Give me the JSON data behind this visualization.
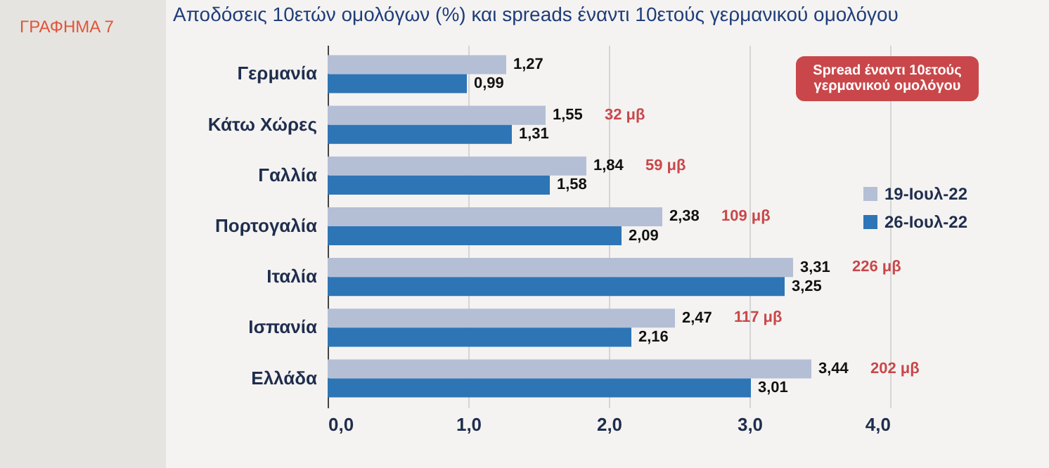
{
  "chart_data": {
    "type": "bar",
    "orientation": "horizontal",
    "title": "Αποδόσεις 10ετών ομολόγων (%) και spreads έναντι 10ετούς γερμανικού ομολόγου",
    "categories": [
      "Γερμανία",
      "Κάτω Χώρες",
      "Γαλλία",
      "Πορτογαλία",
      "Ιταλία",
      "Ισπανία",
      "Ελλάδα"
    ],
    "series": [
      {
        "name": "19-Ιουλ-22",
        "color": "#b4bfd6",
        "values": [
          1.27,
          1.55,
          1.84,
          2.38,
          3.31,
          2.47,
          3.44
        ],
        "value_labels": [
          "1,27",
          "1,55",
          "1,84",
          "2,38",
          "3,31",
          "2,47",
          "3,44"
        ]
      },
      {
        "name": "26-Ιουλ-22",
        "color": "#2e75b6",
        "values": [
          0.99,
          1.31,
          1.58,
          2.09,
          3.25,
          2.16,
          3.01
        ],
        "value_labels": [
          "0,99",
          "1,31",
          "1,58",
          "2,09",
          "3,25",
          "2,16",
          "3,01"
        ]
      }
    ],
    "xlim": [
      0,
      4
    ],
    "xticks": [
      {
        "value": 0,
        "label": "0,0"
      },
      {
        "value": 1,
        "label": "1,0"
      },
      {
        "value": 2,
        "label": "2,0"
      },
      {
        "value": 3,
        "label": "3,0"
      },
      {
        "value": 4,
        "label": "4,0"
      }
    ],
    "grid": "x",
    "legend": "right",
    "annotations": [
      "ΓΡΑΦΗΜΑ 7",
      "Spread έναντι 10ετούς γερμανικού ομολόγου",
      "32 μβ",
      "59 μβ",
      "109 μβ",
      "226 μβ",
      "117 μβ",
      "202 μβ"
    ]
  }
}
